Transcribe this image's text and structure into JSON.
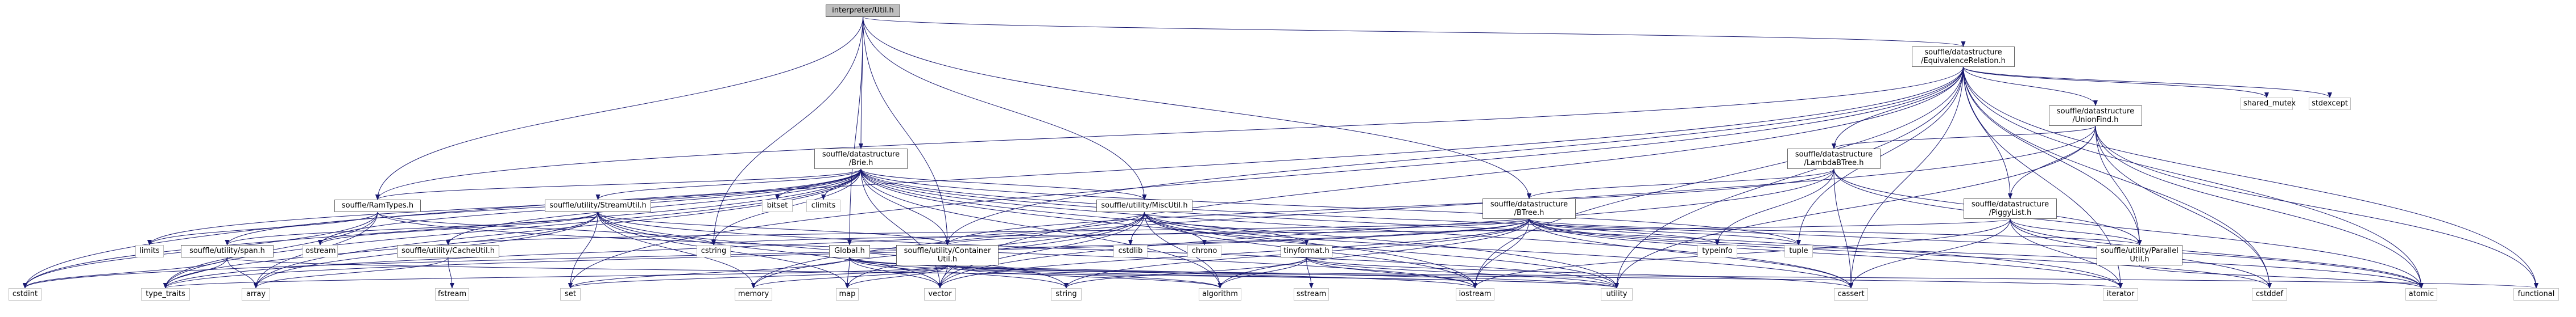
{
  "nodes": [
    {
      "id": "root",
      "lines": [
        "interpreter/Util.h"
      ],
      "focus": true
    },
    {
      "id": "eqrel",
      "lines": [
        "souffle/datastructure",
        "/EquivalenceRelation.h"
      ]
    },
    {
      "id": "unionfind",
      "lines": [
        "souffle/datastructure",
        "/UnionFind.h"
      ]
    },
    {
      "id": "lambdabtree",
      "lines": [
        "souffle/datastructure",
        "/LambdaBTree.h"
      ]
    },
    {
      "id": "piggylist",
      "lines": [
        "souffle/datastructure",
        "/PiggyList.h"
      ]
    },
    {
      "id": "parallelutil",
      "lines": [
        "souffle/utility/Parallel",
        "Util.h"
      ]
    },
    {
      "id": "brie",
      "lines": [
        "souffle/datastructure",
        "/Brie.h"
      ]
    },
    {
      "id": "btree",
      "lines": [
        "souffle/datastructure",
        "/BTree.h"
      ]
    },
    {
      "id": "ramtypes",
      "lines": [
        "souffle/RamTypes.h"
      ]
    },
    {
      "id": "streamutil",
      "lines": [
        "souffle/utility/StreamUtil.h"
      ]
    },
    {
      "id": "miscutil",
      "lines": [
        "souffle/utility/MiscUtil.h"
      ]
    },
    {
      "id": "cacheutil",
      "lines": [
        "souffle/utility/CacheUtil.h"
      ]
    },
    {
      "id": "span",
      "lines": [
        "souffle/utility/span.h"
      ]
    },
    {
      "id": "containerutil",
      "lines": [
        "souffle/utility/Container",
        "Util.h"
      ]
    },
    {
      "id": "globalh",
      "lines": [
        "Global.h"
      ]
    },
    {
      "id": "tinyformat",
      "lines": [
        "tinyformat.h"
      ]
    },
    {
      "id": "shared_mutex",
      "lines": [
        "shared_mutex"
      ],
      "sys": true
    },
    {
      "id": "stdexcept",
      "lines": [
        "stdexcept"
      ],
      "sys": true
    },
    {
      "id": "bitset",
      "lines": [
        "bitset"
      ],
      "sys": true
    },
    {
      "id": "climits",
      "lines": [
        "climits"
      ],
      "sys": true
    },
    {
      "id": "limits",
      "lines": [
        "limits"
      ],
      "sys": true
    },
    {
      "id": "ostream",
      "lines": [
        "ostream"
      ],
      "sys": true
    },
    {
      "id": "cstring",
      "lines": [
        "cstring"
      ],
      "sys": true
    },
    {
      "id": "cstdlib",
      "lines": [
        "cstdlib"
      ],
      "sys": true
    },
    {
      "id": "chrono",
      "lines": [
        "chrono"
      ],
      "sys": true
    },
    {
      "id": "typeinfo",
      "lines": [
        "typeinfo"
      ],
      "sys": true
    },
    {
      "id": "tuple",
      "lines": [
        "tuple"
      ],
      "sys": true
    },
    {
      "id": "fstream",
      "lines": [
        "fstream"
      ],
      "sys": true
    },
    {
      "id": "sstream",
      "lines": [
        "sstream"
      ],
      "sys": true
    },
    {
      "id": "cstdint",
      "lines": [
        "cstdint"
      ],
      "sys": true
    },
    {
      "id": "type_traits",
      "lines": [
        "type_traits"
      ],
      "sys": true
    },
    {
      "id": "array",
      "lines": [
        "array"
      ],
      "sys": true
    },
    {
      "id": "memory",
      "lines": [
        "memory"
      ],
      "sys": true
    },
    {
      "id": "set",
      "lines": [
        "set"
      ],
      "sys": true
    },
    {
      "id": "map",
      "lines": [
        "map"
      ],
      "sys": true
    },
    {
      "id": "vector",
      "lines": [
        "vector"
      ],
      "sys": true
    },
    {
      "id": "string",
      "lines": [
        "string"
      ],
      "sys": true
    },
    {
      "id": "algorithm",
      "lines": [
        "algorithm"
      ],
      "sys": true
    },
    {
      "id": "iostream",
      "lines": [
        "iostream"
      ],
      "sys": true
    },
    {
      "id": "utility",
      "lines": [
        "utility"
      ],
      "sys": true
    },
    {
      "id": "cassert",
      "lines": [
        "cassert"
      ],
      "sys": true
    },
    {
      "id": "iterator",
      "lines": [
        "iterator"
      ],
      "sys": true
    },
    {
      "id": "cstddef",
      "lines": [
        "cstddef"
      ],
      "sys": true
    },
    {
      "id": "atomic",
      "lines": [
        "atomic"
      ],
      "sys": true
    },
    {
      "id": "functional",
      "lines": [
        "functional"
      ],
      "sys": true
    }
  ],
  "edges": [
    [
      "root",
      "eqrel"
    ],
    [
      "root",
      "brie"
    ],
    [
      "root",
      "btree"
    ],
    [
      "root",
      "ramtypes"
    ],
    [
      "root",
      "miscutil"
    ],
    [
      "root",
      "containerutil"
    ],
    [
      "root",
      "globalh"
    ],
    [
      "root",
      "cstring"
    ],
    [
      "eqrel",
      "unionfind"
    ],
    [
      "eqrel",
      "lambdabtree"
    ],
    [
      "eqrel",
      "piggylist"
    ],
    [
      "eqrel",
      "parallelutil"
    ],
    [
      "eqrel",
      "shared_mutex"
    ],
    [
      "eqrel",
      "stdexcept"
    ],
    [
      "eqrel",
      "atomic"
    ],
    [
      "eqrel",
      "functional"
    ],
    [
      "eqrel",
      "cstddef"
    ],
    [
      "eqrel",
      "iterator"
    ],
    [
      "eqrel",
      "utility"
    ],
    [
      "eqrel",
      "cassert"
    ],
    [
      "eqrel",
      "iostream"
    ],
    [
      "eqrel",
      "tuple"
    ],
    [
      "eqrel",
      "vector"
    ],
    [
      "eqrel",
      "set"
    ],
    [
      "eqrel",
      "containerutil"
    ],
    [
      "eqrel",
      "ramtypes"
    ],
    [
      "eqrel",
      "cstdint"
    ],
    [
      "unionfind",
      "lambdabtree"
    ],
    [
      "unionfind",
      "piggylist"
    ],
    [
      "unionfind",
      "parallelutil"
    ],
    [
      "unionfind",
      "atomic"
    ],
    [
      "unionfind",
      "functional"
    ],
    [
      "unionfind",
      "cstddef"
    ],
    [
      "unionfind",
      "utility"
    ],
    [
      "unionfind",
      "memory"
    ],
    [
      "lambdabtree",
      "btree"
    ],
    [
      "lambdabtree",
      "parallelutil"
    ],
    [
      "lambdabtree",
      "atomic"
    ],
    [
      "lambdabtree",
      "cassert"
    ],
    [
      "lambdabtree",
      "typeinfo"
    ],
    [
      "lambdabtree",
      "vector"
    ],
    [
      "lambdabtree",
      "containerutil"
    ],
    [
      "piggylist",
      "parallelutil"
    ],
    [
      "piggylist",
      "atomic"
    ],
    [
      "piggylist",
      "cassert"
    ],
    [
      "piggylist",
      "cstddef"
    ],
    [
      "piggylist",
      "cstring"
    ],
    [
      "piggylist",
      "iterator"
    ],
    [
      "piggylist",
      "iostream"
    ],
    [
      "parallelutil",
      "atomic"
    ],
    [
      "brie",
      "ramtypes"
    ],
    [
      "brie",
      "streamutil"
    ],
    [
      "brie",
      "miscutil"
    ],
    [
      "brie",
      "cacheutil"
    ],
    [
      "brie",
      "span"
    ],
    [
      "brie",
      "containerutil"
    ],
    [
      "brie",
      "bitset"
    ],
    [
      "brie",
      "climits"
    ],
    [
      "brie",
      "limits"
    ],
    [
      "brie",
      "ostream"
    ],
    [
      "brie",
      "cstring"
    ],
    [
      "brie",
      "cstdint"
    ],
    [
      "brie",
      "algorithm"
    ],
    [
      "brie",
      "iostream"
    ],
    [
      "brie",
      "iterator"
    ],
    [
      "brie",
      "utility"
    ],
    [
      "brie",
      "cassert"
    ],
    [
      "brie",
      "vector"
    ],
    [
      "brie",
      "atomic"
    ],
    [
      "brie",
      "type_traits"
    ],
    [
      "brie",
      "array"
    ],
    [
      "brie",
      "tuple"
    ],
    [
      "btree",
      "cacheutil"
    ],
    [
      "btree",
      "containerutil"
    ],
    [
      "btree",
      "parallelutil"
    ],
    [
      "btree",
      "typeinfo"
    ],
    [
      "btree",
      "tuple"
    ],
    [
      "btree",
      "cassert"
    ],
    [
      "btree",
      "iterator"
    ],
    [
      "btree",
      "iostream"
    ],
    [
      "btree",
      "string"
    ],
    [
      "btree",
      "vector"
    ],
    [
      "btree",
      "algorithm"
    ],
    [
      "btree",
      "type_traits"
    ],
    [
      "btree",
      "cstddef"
    ],
    [
      "btree",
      "atomic"
    ],
    [
      "btree",
      "cstdint"
    ],
    [
      "ramtypes",
      "cstdint"
    ],
    [
      "ramtypes",
      "limits"
    ],
    [
      "ramtypes",
      "type_traits"
    ],
    [
      "ramtypes",
      "array"
    ],
    [
      "ramtypes",
      "cstring"
    ],
    [
      "ramtypes",
      "iostream"
    ],
    [
      "streamutil",
      "span"
    ],
    [
      "streamutil",
      "containerutil"
    ],
    [
      "streamutil",
      "map"
    ],
    [
      "streamutil",
      "set"
    ],
    [
      "streamutil",
      "ostream"
    ],
    [
      "streamutil",
      "vector"
    ],
    [
      "streamutil",
      "memory"
    ],
    [
      "streamutil",
      "string"
    ],
    [
      "streamutil",
      "utility"
    ],
    [
      "streamutil",
      "type_traits"
    ],
    [
      "streamutil",
      "array"
    ],
    [
      "miscutil",
      "tinyformat"
    ],
    [
      "miscutil",
      "cstdlib"
    ],
    [
      "miscutil",
      "chrono"
    ],
    [
      "miscutil",
      "cassert"
    ],
    [
      "miscutil",
      "iostream"
    ],
    [
      "miscutil",
      "memory"
    ],
    [
      "miscutil",
      "map"
    ],
    [
      "miscutil",
      "utility"
    ],
    [
      "miscutil",
      "type_traits"
    ],
    [
      "miscutil",
      "algorithm"
    ],
    [
      "miscutil",
      "vector"
    ],
    [
      "cacheutil",
      "array"
    ],
    [
      "cacheutil",
      "fstream"
    ],
    [
      "span",
      "cstdint"
    ],
    [
      "span",
      "type_traits"
    ],
    [
      "span",
      "array"
    ],
    [
      "span",
      "utility"
    ],
    [
      "containerutil",
      "map"
    ],
    [
      "containerutil",
      "set"
    ],
    [
      "containerutil",
      "vector"
    ],
    [
      "containerutil",
      "memory"
    ],
    [
      "containerutil",
      "functional"
    ],
    [
      "containerutil",
      "iterator"
    ],
    [
      "containerutil",
      "utility"
    ],
    [
      "containerutil",
      "type_traits"
    ],
    [
      "containerutil",
      "algorithm"
    ],
    [
      "globalh",
      "map"
    ],
    [
      "globalh",
      "string"
    ],
    [
      "globalh",
      "vector"
    ],
    [
      "globalh",
      "iostream"
    ],
    [
      "globalh",
      "algorithm"
    ],
    [
      "globalh",
      "set"
    ],
    [
      "globalh",
      "utility"
    ],
    [
      "tinyformat",
      "algorithm"
    ],
    [
      "tinyformat",
      "cassert"
    ],
    [
      "tinyformat",
      "iostream"
    ],
    [
      "tinyformat",
      "sstream"
    ],
    [
      "tinyformat",
      "string"
    ],
    [
      "tinyformat",
      "utility"
    ]
  ],
  "colors": {
    "edge": "#191970",
    "node_border": "#666666",
    "focus_fill": "#bfbfbf",
    "sys_border": "#bfbfbf"
  }
}
